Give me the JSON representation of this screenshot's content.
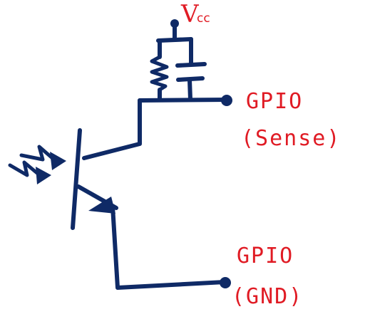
{
  "vcc": {
    "symbol": "V",
    "subscript": "cc"
  },
  "gpio_sense": {
    "line1": "GPIO",
    "line2": "(Sense)"
  },
  "gpio_gnd": {
    "line1": "GPIO",
    "line2": "(GND)"
  },
  "colors": {
    "ink": "#0f2a66",
    "label": "#e01b24",
    "background": "#ffffff"
  },
  "components": [
    "resistor",
    "capacitor",
    "phototransistor"
  ]
}
